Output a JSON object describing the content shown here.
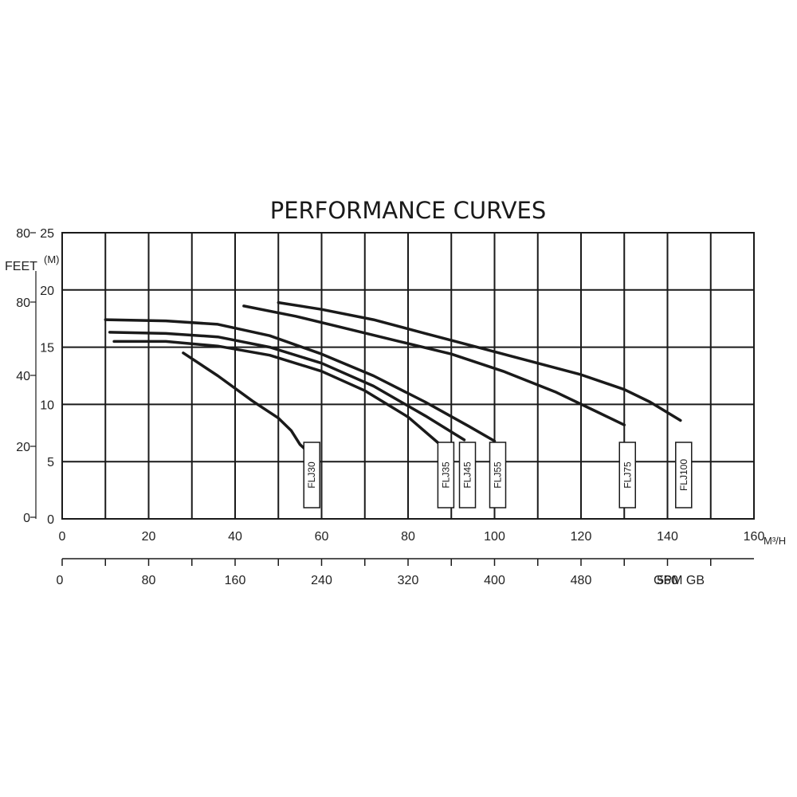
{
  "chart_data": {
    "type": "line",
    "title": "PERFORMANCE CURVES",
    "x_unit_primary": "M³/H",
    "x_unit_secondary": "GPM GB",
    "y_unit_meters": "(M)",
    "y_unit_feet": "FEET",
    "xlim": [
      0,
      160
    ],
    "ylim": [
      0,
      25
    ],
    "grid": true,
    "x_ticks_primary": [
      "0",
      "20",
      "40",
      "60",
      "80",
      "100",
      "120",
      "140",
      "160"
    ],
    "x_ticks_secondary": [
      "0",
      "80",
      "160",
      "240",
      "320",
      "400",
      "480",
      "560"
    ],
    "y_ticks_meters": [
      "25",
      "20",
      "15",
      "10",
      "5",
      "0"
    ],
    "y_ticks_feet": [
      "80",
      "80",
      "40",
      "20",
      "0"
    ],
    "series": [
      {
        "name": "FLJ30",
        "x": [
          28,
          36,
          44,
          50,
          53,
          55,
          57
        ],
        "y": [
          14.5,
          12.5,
          10.3,
          8.8,
          7.7,
          6.5,
          5.8
        ]
      },
      {
        "name": "FLJ35",
        "x": [
          12,
          24,
          36,
          48,
          60,
          70,
          80,
          88
        ],
        "y": [
          15.5,
          15.5,
          15.1,
          14.3,
          12.9,
          11.2,
          8.9,
          6.3
        ]
      },
      {
        "name": "FLJ45",
        "x": [
          11,
          24,
          36,
          48,
          60,
          72,
          84,
          93
        ],
        "y": [
          16.3,
          16.2,
          15.9,
          15.0,
          13.6,
          11.6,
          9.0,
          6.9
        ]
      },
      {
        "name": "FLJ55",
        "x": [
          10,
          24,
          36,
          48,
          60,
          72,
          84,
          94,
          100
        ],
        "y": [
          17.4,
          17.3,
          17.0,
          16.0,
          14.4,
          12.5,
          10.2,
          8.1,
          6.8
        ]
      },
      {
        "name": "FLJ75",
        "x": [
          42,
          54,
          66,
          78,
          90,
          102,
          114,
          124,
          130
        ],
        "y": [
          18.6,
          17.7,
          16.6,
          15.5,
          14.4,
          12.9,
          11.1,
          9.3,
          8.2
        ]
      },
      {
        "name": "FLJ100",
        "x": [
          50,
          60,
          72,
          84,
          96,
          108,
          120,
          130,
          136,
          143
        ],
        "y": [
          18.9,
          18.3,
          17.4,
          16.2,
          15.0,
          13.8,
          12.6,
          11.3,
          10.2,
          8.6
        ]
      }
    ]
  }
}
